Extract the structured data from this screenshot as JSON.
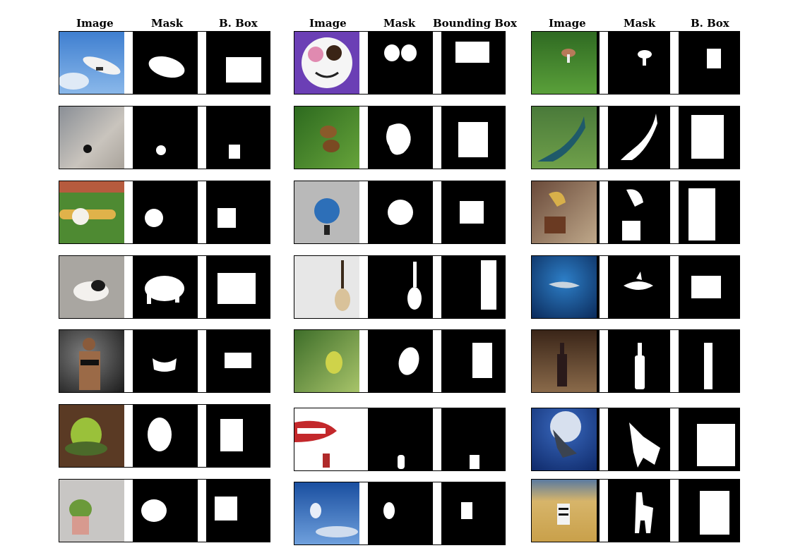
{
  "headers": {
    "col1": [
      "Image",
      "Mask",
      "B. Box"
    ],
    "col2": [
      "Image",
      "Mask",
      "Bounding Box"
    ],
    "col3": [
      "Image",
      "Mask",
      "B. Box"
    ]
  },
  "rows": {
    "col1": [
      "airship",
      "phone-logo",
      "baseball",
      "puppy",
      "woman",
      "cauliflower",
      "cactus"
    ],
    "col2": [
      "donut-plate",
      "flies-leaf",
      "globe",
      "guitar",
      "fruit",
      "lips",
      "moon-sky"
    ],
    "col3": [
      "mushroom",
      "peacock",
      "gramophone",
      "shark",
      "wine-bottle",
      "wolf",
      "zebra"
    ]
  }
}
